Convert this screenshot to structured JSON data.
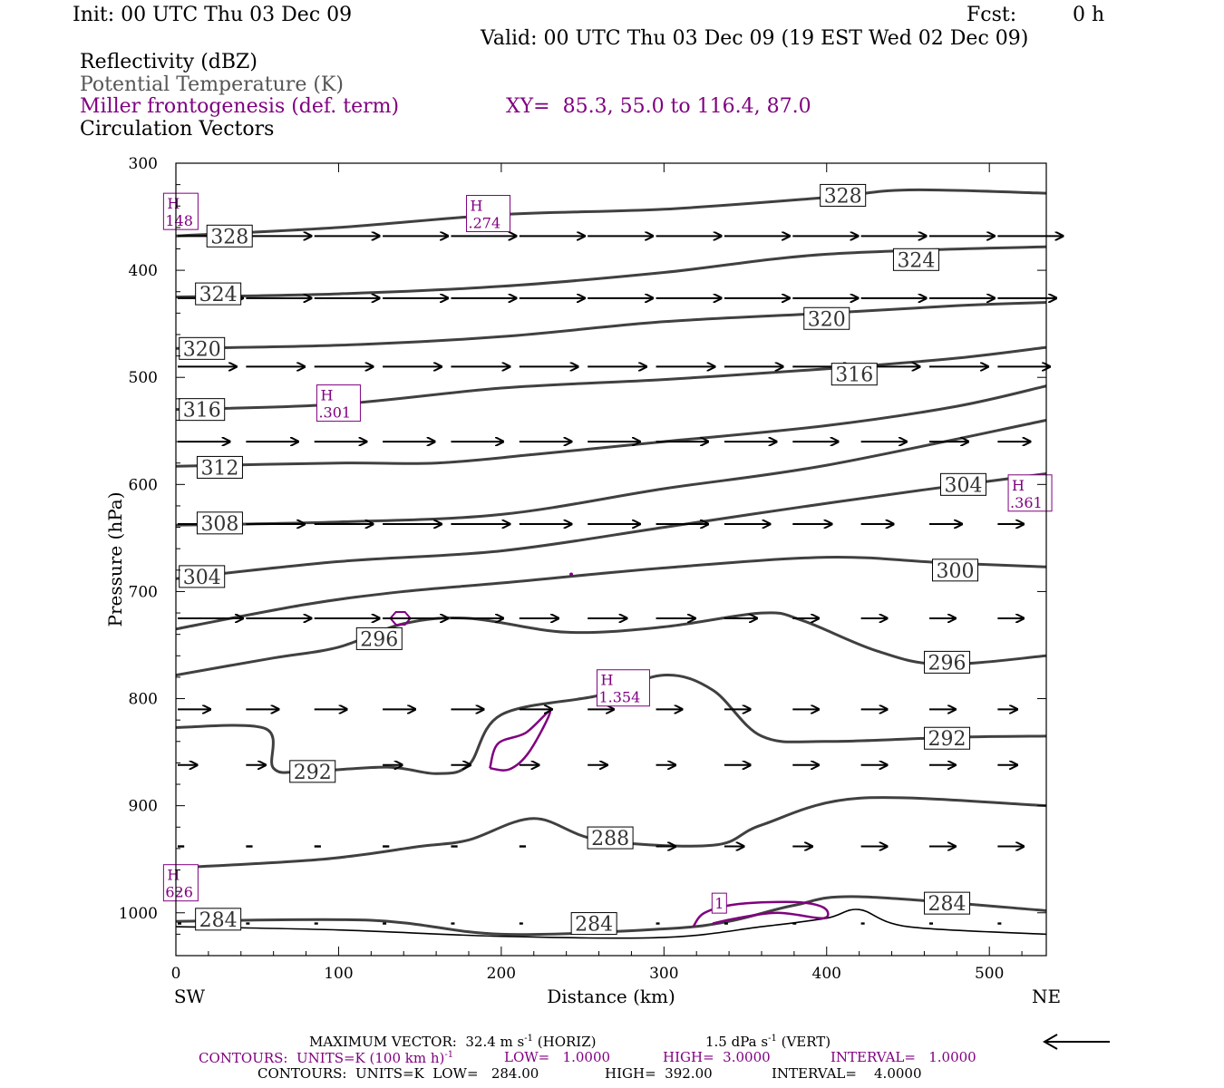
{
  "header": {
    "init": "Init: 00 UTC Thu 03 Dec 09",
    "fcst_label": "Fcst:",
    "fcst_value": "0 h",
    "valid": "Valid: 00 UTC Thu 03 Dec 09 (19 EST Wed 02 Dec 09)",
    "field1": "Reflectivity (dBZ)",
    "field2": "Potential Temperature (K)",
    "field3": "Miller frontogenesis (def. term)",
    "xy": "XY=  85.3, 55.0 to 116.4, 87.0",
    "field4": "Circulation Vectors"
  },
  "colors": {
    "theta": "#404040",
    "fronto": "#800080",
    "vectors": "#000000"
  },
  "footer": {
    "max_vector": "MAXIMUM VECTOR:  32.4 m s",
    "max_vector_horiz": "(HORIZ)",
    "vert": "1.5 dPa s",
    "vert_tail": "(VERT)",
    "sup": "-1",
    "fronto_contours_a": "CONTOURS:  UNITS=K (100 km h)",
    "fronto_contours_b": "LOW=   1.0000",
    "fronto_contours_c": "HIGH=  3.0000",
    "fronto_contours_d": "INTERVAL=   1.0000",
    "theta_contours_a": "CONTOURS:  UNITS=K  LOW=   284.00",
    "theta_contours_b": "HIGH=  392.00",
    "theta_contours_c": "INTERVAL=    4.0000"
  },
  "chart_data": {
    "type": "line",
    "xlabel": "Distance (km)",
    "ylabel": "Pressure (hPa)",
    "x_left_label": "SW",
    "x_right_label": "NE",
    "xlim": [
      0,
      535
    ],
    "ylim": [
      300,
      1040
    ],
    "y_reversed": true,
    "x_ticks": [
      0,
      100,
      200,
      300,
      400,
      500
    ],
    "y_ticks": [
      300,
      400,
      500,
      600,
      700,
      800,
      900,
      1000
    ],
    "theta_contours": [
      {
        "level": 328,
        "points": [
          [
            0,
            368
          ],
          [
            100,
            360
          ],
          [
            200,
            348
          ],
          [
            300,
            343
          ],
          [
            400,
            332
          ],
          [
            450,
            325
          ],
          [
            535,
            328
          ]
        ]
      },
      {
        "level": 324,
        "points": [
          [
            0,
            425
          ],
          [
            100,
            422
          ],
          [
            200,
            415
          ],
          [
            300,
            402
          ],
          [
            400,
            385
          ],
          [
            535,
            378
          ]
        ]
      },
      {
        "level": 320,
        "points": [
          [
            0,
            473
          ],
          [
            100,
            470
          ],
          [
            200,
            462
          ],
          [
            300,
            448
          ],
          [
            400,
            440
          ],
          [
            480,
            433
          ],
          [
            535,
            430
          ]
        ]
      },
      {
        "level": 316,
        "points": [
          [
            0,
            530
          ],
          [
            100,
            525
          ],
          [
            200,
            510
          ],
          [
            300,
            502
          ],
          [
            400,
            492
          ],
          [
            480,
            482
          ],
          [
            535,
            472
          ]
        ]
      },
      {
        "level": 312,
        "points": [
          [
            0,
            583
          ],
          [
            100,
            580
          ],
          [
            160,
            580
          ],
          [
            220,
            572
          ],
          [
            300,
            560
          ],
          [
            400,
            545
          ],
          [
            480,
            527
          ],
          [
            535,
            508
          ]
        ]
      },
      {
        "level": 308,
        "points": [
          [
            0,
            638
          ],
          [
            100,
            635
          ],
          [
            200,
            628
          ],
          [
            300,
            604
          ],
          [
            400,
            582
          ],
          [
            535,
            540
          ]
        ]
      },
      {
        "level": 304,
        "points": [
          [
            0,
            688
          ],
          [
            100,
            672
          ],
          [
            200,
            662
          ],
          [
            300,
            640
          ],
          [
            380,
            622
          ],
          [
            460,
            605
          ],
          [
            535,
            590
          ]
        ]
      },
      {
        "level": 300,
        "points": [
          [
            0,
            735
          ],
          [
            80,
            712
          ],
          [
            140,
            700
          ],
          [
            200,
            692
          ],
          [
            300,
            678
          ],
          [
            400,
            668
          ],
          [
            470,
            673
          ],
          [
            535,
            677
          ]
        ]
      },
      {
        "level": 296,
        "points": [
          [
            0,
            778
          ],
          [
            60,
            762
          ],
          [
            100,
            752
          ],
          [
            140,
            730
          ],
          [
            180,
            725
          ],
          [
            240,
            738
          ],
          [
            300,
            733
          ],
          [
            360,
            720
          ],
          [
            385,
            727
          ],
          [
            430,
            755
          ],
          [
            470,
            768
          ],
          [
            535,
            760
          ]
        ]
      },
      {
        "level": 292,
        "points": [
          [
            0,
            827
          ],
          [
            55,
            828
          ],
          [
            60,
            865
          ],
          [
            80,
            868
          ],
          [
            130,
            864
          ],
          [
            160,
            870
          ],
          [
            180,
            862
          ],
          [
            200,
            815
          ],
          [
            260,
            797
          ],
          [
            300,
            778
          ],
          [
            330,
            792
          ],
          [
            360,
            835
          ],
          [
            400,
            840
          ],
          [
            480,
            836
          ],
          [
            535,
            835
          ]
        ]
      },
      {
        "level": 288,
        "points": [
          [
            0,
            958
          ],
          [
            90,
            950
          ],
          [
            150,
            938
          ],
          [
            180,
            932
          ],
          [
            220,
            912
          ],
          [
            260,
            932
          ],
          [
            330,
            937
          ],
          [
            360,
            918
          ],
          [
            420,
            893
          ],
          [
            535,
            900
          ]
        ]
      },
      {
        "level": 284,
        "points": [
          [
            0,
            1008
          ],
          [
            120,
            1007
          ],
          [
            200,
            1020
          ],
          [
            300,
            1015
          ],
          [
            340,
            1008
          ],
          [
            380,
            993
          ],
          [
            420,
            985
          ],
          [
            535,
            998
          ]
        ]
      },
      {
        "level": 284,
        "points": [
          [
            0,
            1013
          ],
          [
            100,
            1016
          ],
          [
            200,
            1022
          ],
          [
            300,
            1023
          ],
          [
            360,
            1013
          ],
          [
            400,
            1005
          ],
          [
            420,
            997
          ],
          [
            450,
            1013
          ],
          [
            535,
            1020
          ]
        ]
      }
    ],
    "fronto_contours": [
      {
        "level": 1,
        "points": [
          [
            193,
            865
          ],
          [
            198,
            842
          ],
          [
            215,
            832
          ],
          [
            230,
            812
          ],
          [
            217,
            850
          ],
          [
            205,
            866
          ],
          [
            193,
            865
          ]
        ]
      },
      {
        "level": 1,
        "points": [
          [
            318,
            1013
          ],
          [
            325,
            1000
          ],
          [
            345,
            992
          ],
          [
            380,
            990
          ],
          [
            398,
            995
          ],
          [
            398,
            1005
          ],
          [
            370,
            1000
          ],
          [
            345,
            1005
          ],
          [
            330,
            1010
          ]
        ]
      }
    ],
    "fronto_max_labels": [
      {
        "text": "H",
        "value": "148",
        "x": 3,
        "p": 345
      },
      {
        "text": "H",
        "value": ".274",
        "x": 192,
        "p": 347
      },
      {
        "text": "H",
        "value": ".301",
        "x": 100,
        "p": 524
      },
      {
        "text": "H",
        "value": ".361",
        "x": 525,
        "p": 608
      },
      {
        "text": "H",
        "value": "1.354",
        "x": 275,
        "p": 790
      },
      {
        "text": "H",
        "value": "626",
        "x": 3,
        "p": 972
      },
      {
        "text": "1",
        "value": "",
        "x": 334,
        "p": 991
      }
    ],
    "theta_labels": [
      {
        "text": "328",
        "x": 410,
        "p": 330
      },
      {
        "text": "328",
        "x": 33,
        "p": 368
      },
      {
        "text": "324",
        "x": 455,
        "p": 390
      },
      {
        "text": "324",
        "x": 26,
        "p": 422
      },
      {
        "text": "320",
        "x": 400,
        "p": 445
      },
      {
        "text": "320",
        "x": 16,
        "p": 473
      },
      {
        "text": "316",
        "x": 417,
        "p": 497
      },
      {
        "text": "316",
        "x": 16,
        "p": 530
      },
      {
        "text": "312",
        "x": 27,
        "p": 584
      },
      {
        "text": "304",
        "x": 484,
        "p": 600
      },
      {
        "text": "308",
        "x": 27,
        "p": 636
      },
      {
        "text": "304",
        "x": 16,
        "p": 686
      },
      {
        "text": "300",
        "x": 479,
        "p": 680
      },
      {
        "text": "296",
        "x": 125,
        "p": 744
      },
      {
        "text": "296",
        "x": 474,
        "p": 766
      },
      {
        "text": "292",
        "x": 474,
        "p": 837
      },
      {
        "text": "292",
        "x": 84,
        "p": 868
      },
      {
        "text": "288",
        "x": 267,
        "p": 930
      },
      {
        "text": "284",
        "x": 474,
        "p": 991
      },
      {
        "text": "284",
        "x": 26,
        "p": 1006
      },
      {
        "text": "284",
        "x": 257,
        "p": 1010
      }
    ],
    "vector_rows": [
      {
        "p": 368,
        "x": [
          0,
          42,
          84,
          126,
          168,
          210,
          252,
          294,
          336,
          378,
          420,
          462,
          504
        ],
        "u": [
          1.0,
          1.0,
          1.0,
          1.0,
          1.0,
          1.0,
          1.0,
          1.0,
          1.0,
          1.0,
          1.0,
          1.0,
          1.0
        ],
        "w": [
          0,
          0,
          0,
          0,
          0,
          0,
          0,
          0,
          0,
          0,
          0,
          0,
          0
        ]
      },
      {
        "p": 426,
        "x": [
          0,
          42,
          84,
          126,
          168,
          210,
          252,
          294,
          336,
          378,
          420,
          462,
          504
        ],
        "u": [
          1.0,
          1.0,
          1.0,
          1.0,
          1.0,
          1.0,
          1.0,
          1.0,
          1.0,
          1.0,
          1.0,
          1.0,
          0.9
        ],
        "w": [
          0,
          0,
          0,
          0,
          0,
          0,
          0,
          0,
          0,
          0,
          0,
          0,
          0
        ]
      },
      {
        "p": 490,
        "x": [
          0,
          42,
          84,
          126,
          168,
          210,
          252,
          294,
          336,
          378,
          420,
          462,
          504
        ],
        "u": [
          0.9,
          0.9,
          0.9,
          0.9,
          0.9,
          0.9,
          0.9,
          0.9,
          0.9,
          0.9,
          0.9,
          0.9,
          0.8
        ],
        "w": [
          0,
          0,
          0,
          0,
          0,
          0,
          0,
          0,
          0,
          0,
          0,
          0,
          0
        ]
      },
      {
        "p": 560,
        "x": [
          0,
          42,
          84,
          126,
          168,
          210,
          252,
          294,
          336,
          378,
          420,
          462,
          504
        ],
        "u": [
          0.8,
          0.8,
          0.8,
          0.8,
          0.8,
          0.8,
          0.8,
          0.8,
          0.8,
          0.7,
          0.7,
          0.6,
          0.5
        ],
        "w": [
          0,
          0,
          0,
          0,
          0,
          0,
          0,
          0,
          0,
          0,
          0,
          0,
          0
        ]
      },
      {
        "p": 637,
        "x": [
          0,
          42,
          84,
          126,
          168,
          210,
          252,
          294,
          336,
          378,
          420,
          462,
          504
        ],
        "u": [
          0.9,
          0.9,
          0.9,
          0.9,
          0.9,
          0.8,
          0.8,
          0.8,
          0.7,
          0.6,
          0.5,
          0.5,
          0.4
        ],
        "w": [
          0,
          0,
          0,
          0,
          0,
          0,
          0,
          0,
          0,
          0,
          0,
          0,
          0
        ]
      },
      {
        "p": 725,
        "x": [
          0,
          42,
          84,
          126,
          168,
          210,
          252,
          294,
          336,
          378,
          420,
          462,
          504
        ],
        "u": [
          1.0,
          1.0,
          1.0,
          1.0,
          0.8,
          0.6,
          0.6,
          0.6,
          0.5,
          0.4,
          0.4,
          0.4,
          0.4
        ],
        "w": [
          0,
          0,
          0,
          0,
          0,
          0,
          0,
          0,
          0,
          0,
          0,
          0,
          0
        ]
      },
      {
        "p": 810,
        "x": [
          0,
          42,
          84,
          126,
          168,
          210,
          252,
          294,
          336,
          378,
          420,
          462,
          504
        ],
        "u": [
          0.5,
          0.5,
          0.5,
          0.5,
          0.5,
          0.5,
          0.4,
          0.4,
          0.4,
          0.4,
          0.4,
          0.4,
          0.3
        ],
        "w": [
          0,
          0,
          0,
          0,
          0,
          0,
          0,
          0,
          0,
          0,
          0,
          0,
          0
        ]
      },
      {
        "p": 862,
        "x": [
          0,
          42,
          84,
          126,
          168,
          210,
          252,
          294,
          336,
          378,
          420,
          462,
          504
        ],
        "u": [
          0.3,
          0.3,
          0.3,
          0.3,
          0.3,
          0.3,
          0.3,
          0.3,
          0.4,
          0.4,
          0.4,
          0.4,
          0.3
        ],
        "w": [
          0,
          0,
          0,
          0,
          0,
          0,
          0,
          0,
          0,
          0,
          0,
          0,
          0
        ]
      },
      {
        "p": 938,
        "x": [
          0,
          42,
          84,
          126,
          168,
          210,
          252,
          294,
          336,
          378,
          420,
          462,
          504
        ],
        "u": [
          0.1,
          0.1,
          0.1,
          0.1,
          0.1,
          0.1,
          0.1,
          0.3,
          0.3,
          0.3,
          0.4,
          0.4,
          0.4
        ],
        "w": [
          0,
          0,
          0,
          0,
          0,
          0,
          0,
          0,
          0,
          0,
          0,
          0,
          0
        ]
      },
      {
        "p": 1010,
        "x": [
          0,
          42,
          84,
          126,
          168,
          210,
          252,
          294,
          336,
          378,
          420,
          462,
          504
        ],
        "u": [
          0.05,
          0.05,
          0.05,
          0.05,
          0.05,
          0.05,
          0.05,
          0.05,
          0.05,
          0.05,
          0.05,
          0.05,
          0.05
        ],
        "w": [
          0,
          0,
          0,
          0,
          0,
          0,
          0,
          0,
          0,
          0,
          0,
          0,
          0
        ]
      }
    ]
  }
}
